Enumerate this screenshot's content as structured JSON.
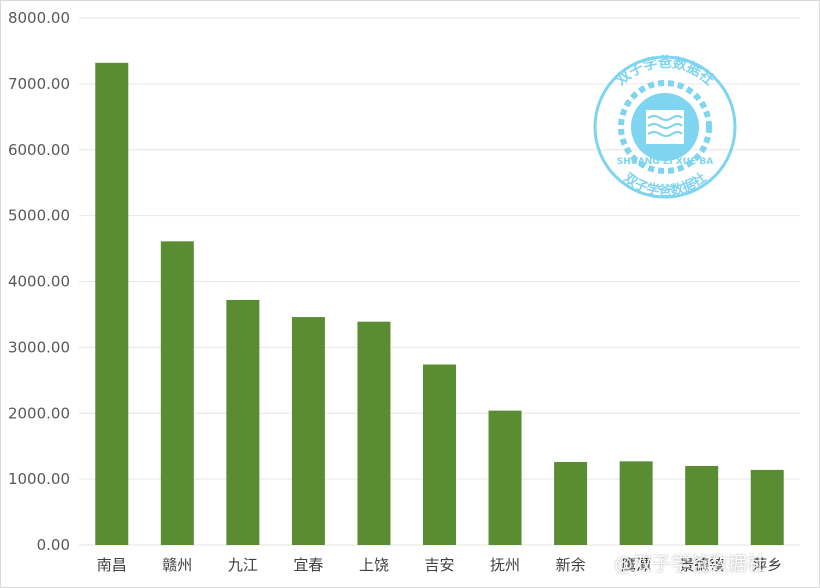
{
  "chart_data": {
    "type": "bar",
    "categories": [
      "南昌",
      "赣州",
      "九江",
      "宜春",
      "上饶",
      "吉安",
      "抚州",
      "新余",
      "鹰潭",
      "景德镇",
      "萍乡"
    ],
    "values": [
      7320,
      4610,
      3720,
      3460,
      3390,
      2740,
      2040,
      1260,
      1270,
      1200,
      1140
    ],
    "title": "",
    "xlabel": "",
    "ylabel": "",
    "ylim": [
      0,
      8000
    ],
    "y_ticks": [
      "0.00",
      "1000.00",
      "2000.00",
      "3000.00",
      "4000.00",
      "5000.00",
      "6000.00",
      "7000.00",
      "8000.00"
    ],
    "grid": true,
    "bar_color": "#5a8c32",
    "grid_color": "#e6e6e6"
  },
  "watermark": {
    "stamp_text_top": "双子学爸数据社",
    "stamp_text_bottom": "双子学爸数据社",
    "stamp_text_latin": "SHUANG ZI XUE BA",
    "stamp_color": "#7fd4f0",
    "footer_text": "@双子学爸数据社"
  }
}
